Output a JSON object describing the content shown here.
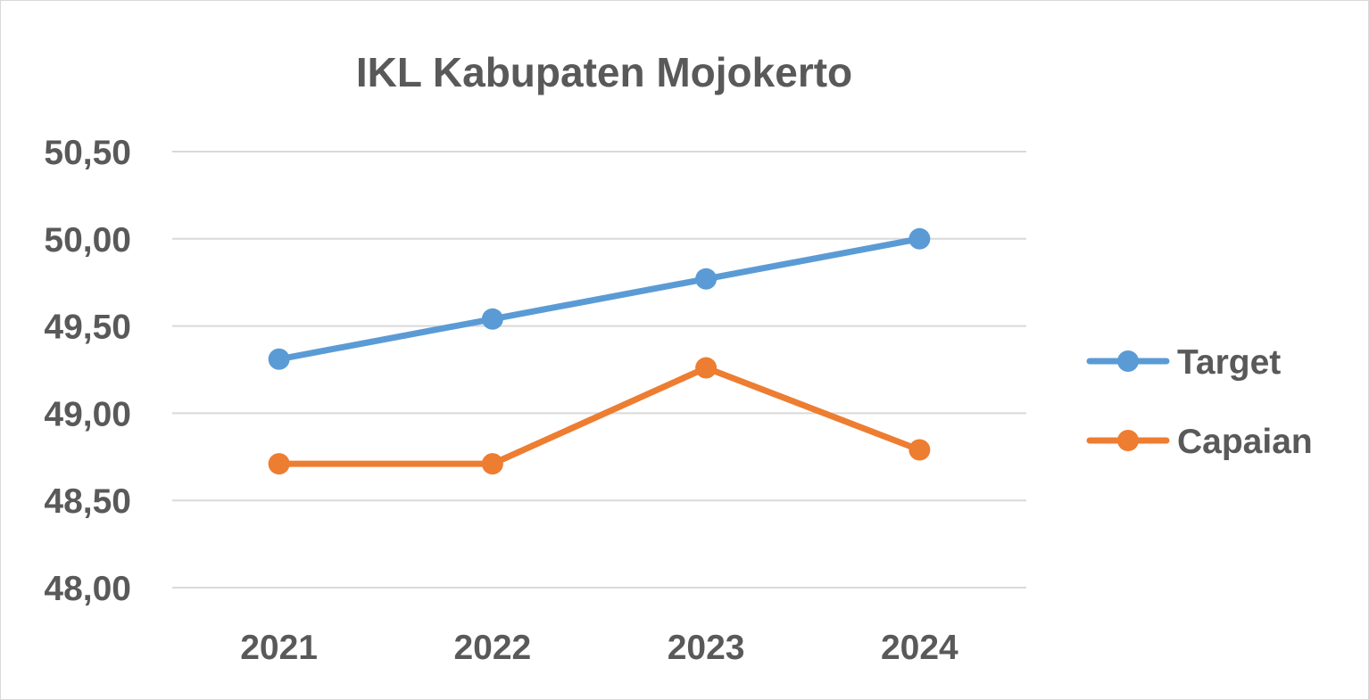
{
  "chart_data": {
    "type": "line",
    "title": "IKL Kabupaten Mojokerto",
    "xlabel": "",
    "ylabel": "",
    "categories": [
      "2021",
      "2022",
      "2023",
      "2024"
    ],
    "ylim": [
      48.0,
      50.5
    ],
    "yticks": [
      48.0,
      48.5,
      49.0,
      49.5,
      50.0,
      50.5
    ],
    "ytick_labels": [
      "48,00",
      "48,50",
      "49,00",
      "49,50",
      "50,00",
      "50,50"
    ],
    "grid": true,
    "legend_position": "right",
    "series": [
      {
        "name": "Target",
        "color": "#5b9bd5",
        "values": [
          49.31,
          49.54,
          49.77,
          50.0
        ]
      },
      {
        "name": "Capaian",
        "color": "#ed7d31",
        "values": [
          48.71,
          48.71,
          49.26,
          48.79
        ]
      }
    ]
  }
}
